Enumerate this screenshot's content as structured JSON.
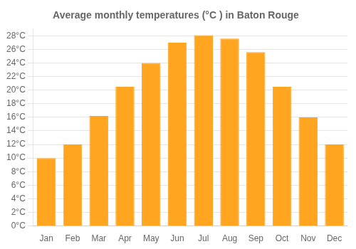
{
  "chart_data": {
    "type": "bar",
    "title": "Average monthly temperatures (°C ) in Baton Rouge",
    "categories": [
      "Jan",
      "Feb",
      "Mar",
      "Apr",
      "May",
      "Jun",
      "Jul",
      "Aug",
      "Sep",
      "Oct",
      "Nov",
      "Dec"
    ],
    "values": [
      10.0,
      12.0,
      16.2,
      20.5,
      24.0,
      27.0,
      28.1,
      27.6,
      25.6,
      20.5,
      16.0,
      12.0
    ],
    "color": "#FFA520",
    "ylim": [
      0,
      29
    ],
    "yticks": [
      {
        "value": 0,
        "label": "0°C"
      },
      {
        "value": 2,
        "label": "2°C"
      },
      {
        "value": 4,
        "label": "4°C"
      },
      {
        "value": 6,
        "label": "6°C"
      },
      {
        "value": 8,
        "label": "8°C"
      },
      {
        "value": 10,
        "label": "10°C"
      },
      {
        "value": 12,
        "label": "12°C"
      },
      {
        "value": 14,
        "label": "14°C"
      },
      {
        "value": 16,
        "label": "16°C"
      },
      {
        "value": 18,
        "label": "18°C"
      },
      {
        "value": 20,
        "label": "20°C"
      },
      {
        "value": 22,
        "label": "22°C"
      },
      {
        "value": 24,
        "label": "24°C"
      },
      {
        "value": 26,
        "label": "26°C"
      },
      {
        "value": 28,
        "label": "28°C"
      }
    ],
    "grid": true
  }
}
